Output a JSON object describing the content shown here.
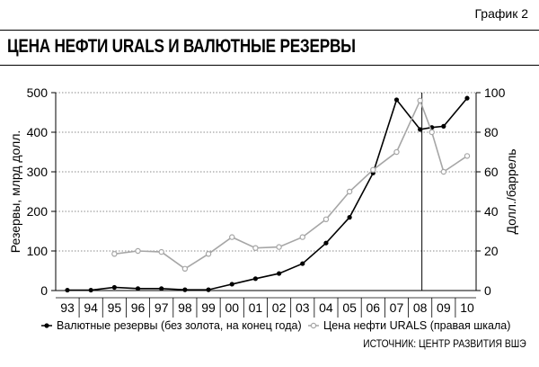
{
  "figure_label": "График 2",
  "title": "ЦЕНА НЕФТИ URALS И ВАЛЮТНЫЕ РЕЗЕРВЫ",
  "source": "ИСТОЧНИК: ЦЕНТР РАЗВИТИЯ ВШЭ",
  "colors": {
    "reserves": "#000000",
    "oil": "#a6a6a6",
    "grid": "#666666"
  },
  "chart_data": {
    "type": "line",
    "x_categories": [
      "93",
      "94",
      "95",
      "96",
      "97",
      "98",
      "99",
      "00",
      "01",
      "02",
      "03",
      "04",
      "05",
      "06",
      "07",
      "08",
      "09",
      "10"
    ],
    "y_left": {
      "label": "Резервы, млрд долл.",
      "lim": [
        0,
        500
      ],
      "ticks": [
        0,
        100,
        200,
        300,
        400,
        500
      ]
    },
    "y_right": {
      "label": "Долл./баррель",
      "lim": [
        0,
        100
      ],
      "ticks": [
        0,
        20,
        40,
        60,
        80,
        100
      ]
    },
    "grid": "horizontal dotted",
    "vertical_marker": "08",
    "legend_position": "bottom",
    "series": [
      {
        "name": "Валютные резервы (без золота, на конец года)",
        "axis": "left",
        "marker": "filled circle",
        "x": [
          1993,
          1994,
          1995,
          1996,
          1997,
          1998,
          1999,
          2000,
          2001,
          2002,
          2003,
          2004,
          2005,
          2006,
          2007,
          2008,
          2008.5,
          2009,
          2010
        ],
        "values": [
          1,
          1,
          8,
          5,
          5,
          2,
          2,
          16,
          30,
          43,
          68,
          120,
          185,
          297,
          482,
          407,
          412,
          415,
          486
        ]
      },
      {
        "name": "Цена нефти URALS (правая шкала)",
        "axis": "right",
        "marker": "open circle",
        "x": [
          1995,
          1996,
          1997,
          1998,
          1999,
          2000,
          2001,
          2002,
          2003,
          2004,
          2005,
          2006,
          2007,
          2008,
          2008.5,
          2009,
          2010
        ],
        "values": [
          18.5,
          20,
          19.5,
          11,
          18.5,
          27,
          21.5,
          22,
          27,
          36,
          50,
          61,
          70,
          96,
          80,
          60,
          68
        ]
      }
    ]
  }
}
